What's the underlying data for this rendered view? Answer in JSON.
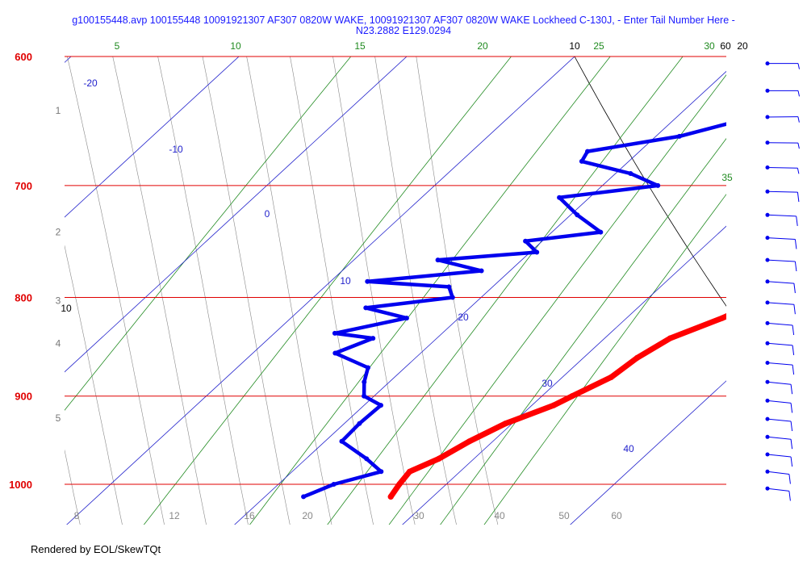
{
  "title": "g100155448.avp 100155448 10091921307 AF307 0820W WAKE, 10091921307 AF307 0820W WAKE Lockheed C-130J, - Enter Tail Number Here -\nN23.2882 E129.0294",
  "footer": "Rendered by EOL/SkewTQt",
  "chart_data": {
    "type": "line",
    "chart_kind": "skew-T log-P diagram",
    "pressure_axis": {
      "label_color": "#e00000",
      "range_hpa": [
        1020,
        600
      ],
      "scale": "log",
      "ticks": [
        600,
        700,
        800,
        900,
        1000
      ]
    },
    "temperature_axis": {
      "range_c": [
        5,
        60
      ],
      "tick_color": "#000000",
      "ticks": [
        10,
        20,
        30,
        40,
        50,
        60
      ]
    },
    "isotherms": [
      -20,
      -10,
      0,
      10,
      20,
      30,
      40
    ],
    "altitude_km_labels": [
      {
        "km": "1",
        "p": 640
      },
      {
        "km": "2",
        "p": 740
      },
      {
        "km": "3",
        "p": 803
      },
      {
        "km": "4",
        "p": 845
      },
      {
        "km": "5",
        "p": 924
      }
    ],
    "mixing_ratio_green": [
      5,
      10,
      15,
      20,
      25,
      30,
      35
    ],
    "theta_e_bottom_labels": [
      "8",
      "12",
      "16",
      "20",
      "30",
      "40",
      "50",
      "60"
    ],
    "colors": {
      "temperature": "#ff0000",
      "dewpoint": "#0000ee",
      "isobar": "#e00000",
      "isotherm": "#2222cc",
      "mixing_ratio": "#228b22",
      "dry_adiabat": "#000000",
      "moist_adiabat": "#888888",
      "wind_barbs": "#0000ee"
    },
    "series": [
      {
        "color": "#ff0000",
        "points": [
          [
            1015,
            27.5
          ],
          [
            1000,
            27.2
          ],
          [
            985,
            27.0
          ],
          [
            970,
            27.9
          ],
          [
            950,
            28.6
          ],
          [
            930,
            29.6
          ],
          [
            910,
            31.3
          ],
          [
            900,
            31.8
          ],
          [
            880,
            32.9
          ],
          [
            860,
            33.2
          ],
          [
            840,
            33.9
          ],
          [
            820,
            35.7
          ],
          [
            800,
            37.1
          ],
          [
            785,
            37.6
          ],
          [
            770,
            37.8
          ],
          [
            750,
            38.3
          ],
          [
            730,
            38.6
          ],
          [
            710,
            38.8
          ],
          [
            690,
            39.0
          ],
          [
            675,
            39.5
          ],
          [
            660,
            40.4
          ],
          [
            645,
            40.6
          ],
          [
            630,
            40.3
          ],
          [
            615,
            40.0
          ],
          [
            605,
            40.2
          ]
        ]
      },
      {
        "color": "#0000ee",
        "points": [
          [
            1015,
            22.3
          ],
          [
            1000,
            23.3
          ],
          [
            985,
            25.3
          ],
          [
            970,
            23.6
          ],
          [
            950,
            21.0
          ],
          [
            930,
            20.9
          ],
          [
            910,
            21.0
          ],
          [
            900,
            19.4
          ],
          [
            885,
            18.5
          ],
          [
            870,
            17.8
          ],
          [
            855,
            14.9
          ],
          [
            840,
            16.2
          ],
          [
            835,
            13.6
          ],
          [
            820,
            16.9
          ],
          [
            810,
            13.8
          ],
          [
            800,
            18.3
          ],
          [
            790,
            17.4
          ],
          [
            785,
            12.2
          ],
          [
            775,
            18.3
          ],
          [
            765,
            15.0
          ],
          [
            758,
            20.4
          ],
          [
            748,
            19.0
          ],
          [
            740,
            22.9
          ],
          [
            725,
            20.4
          ],
          [
            710,
            18.2
          ],
          [
            700,
            23.3
          ],
          [
            690,
            20.9
          ],
          [
            680,
            17.2
          ],
          [
            672,
            16.9
          ],
          [
            660,
            21.4
          ],
          [
            650,
            23.5
          ],
          [
            638,
            26.9
          ],
          [
            625,
            30.4
          ],
          [
            610,
            33.6
          ],
          [
            600,
            34.8
          ]
        ]
      }
    ],
    "wind_barbs": [
      {
        "p": 605,
        "speed_kt": 5,
        "dir_deg": 90
      },
      {
        "p": 625,
        "speed_kt": 5,
        "dir_deg": 90
      },
      {
        "p": 645,
        "speed_kt": 5,
        "dir_deg": 85
      },
      {
        "p": 665,
        "speed_kt": 5,
        "dir_deg": 95
      },
      {
        "p": 685,
        "speed_kt": 5,
        "dir_deg": 100
      },
      {
        "p": 705,
        "speed_kt": 10,
        "dir_deg": 100
      },
      {
        "p": 725,
        "speed_kt": 10,
        "dir_deg": 110
      },
      {
        "p": 745,
        "speed_kt": 10,
        "dir_deg": 115
      },
      {
        "p": 765,
        "speed_kt": 10,
        "dir_deg": 115
      },
      {
        "p": 785,
        "speed_kt": 10,
        "dir_deg": 120
      },
      {
        "p": 805,
        "speed_kt": 10,
        "dir_deg": 120
      },
      {
        "p": 825,
        "speed_kt": 10,
        "dir_deg": 125
      },
      {
        "p": 845,
        "speed_kt": 10,
        "dir_deg": 125
      },
      {
        "p": 865,
        "speed_kt": 10,
        "dir_deg": 125
      },
      {
        "p": 885,
        "speed_kt": 10,
        "dir_deg": 130
      },
      {
        "p": 905,
        "speed_kt": 10,
        "dir_deg": 130
      },
      {
        "p": 925,
        "speed_kt": 10,
        "dir_deg": 130
      },
      {
        "p": 945,
        "speed_kt": 10,
        "dir_deg": 130
      },
      {
        "p": 965,
        "speed_kt": 10,
        "dir_deg": 130
      },
      {
        "p": 985,
        "speed_kt": 10,
        "dir_deg": 135
      },
      {
        "p": 1005,
        "speed_kt": 10,
        "dir_deg": 135
      }
    ]
  }
}
